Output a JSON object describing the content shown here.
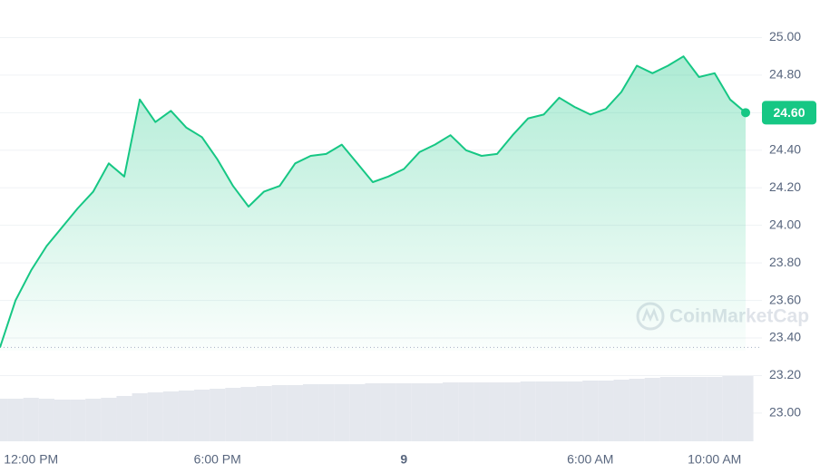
{
  "chart_data": {
    "type": "line",
    "categories": [
      null,
      null,
      "12:00 PM",
      null,
      null,
      null,
      null,
      null,
      null,
      null,
      null,
      null,
      null,
      null,
      "6:00 PM",
      null,
      null,
      null,
      null,
      null,
      null,
      null,
      null,
      null,
      null,
      null,
      "9",
      null,
      null,
      null,
      null,
      null,
      null,
      null,
      null,
      null,
      null,
      null,
      "6:00 AM",
      null,
      null,
      null,
      null,
      null,
      null,
      null,
      "10:00 AM",
      null,
      null
    ],
    "values": [
      23.35,
      23.6,
      23.76,
      23.89,
      23.99,
      24.09,
      24.18,
      24.33,
      24.26,
      24.67,
      24.55,
      24.61,
      24.52,
      24.47,
      24.35,
      24.21,
      24.1,
      24.18,
      24.21,
      24.33,
      24.37,
      24.38,
      24.43,
      24.33,
      24.23,
      24.26,
      24.3,
      24.39,
      24.43,
      24.48,
      24.4,
      24.37,
      24.38,
      24.48,
      24.57,
      24.59,
      24.68,
      24.63,
      24.59,
      24.62,
      24.71,
      24.85,
      24.81,
      24.85,
      24.9,
      24.79,
      24.81,
      24.67,
      24.6
    ],
    "value_labels": [
      null,
      null,
      null,
      null,
      null,
      null,
      null,
      null,
      null,
      null,
      null,
      null,
      null,
      null,
      null,
      null,
      null,
      null,
      null,
      null,
      null,
      null,
      null,
      null,
      null,
      null,
      null,
      null,
      null,
      null,
      null,
      null,
      null,
      null,
      null,
      null,
      null,
      null,
      null,
      null,
      null,
      null,
      null,
      null,
      null,
      null,
      null,
      null,
      "24.60"
    ],
    "volume": [
      47,
      47,
      48,
      47,
      46,
      46,
      47,
      48,
      50,
      53,
      54,
      55,
      56,
      57,
      58,
      59,
      60,
      61,
      62,
      62,
      63,
      63,
      63,
      63,
      64,
      64,
      64,
      64,
      64,
      65,
      65,
      65,
      65,
      65,
      66,
      66,
      66,
      66,
      67,
      67,
      68,
      69,
      70,
      71,
      71,
      71,
      71,
      72,
      72
    ],
    "color": "#16c784",
    "ylim": [
      22.85,
      25.2
    ],
    "y2lim": [
      0,
      100
    ],
    "yticks": [
      {
        "value": 23,
        "label": "23.00"
      },
      {
        "value": 23.2,
        "label": "23.20"
      },
      {
        "value": 23.4,
        "label": "23.40"
      },
      {
        "value": 23.6,
        "label": "23.60"
      },
      {
        "value": 23.8,
        "label": "23.80"
      },
      {
        "value": 24,
        "label": "24.00"
      },
      {
        "value": 24.2,
        "label": "24.20"
      },
      {
        "value": 24.4,
        "label": "24.40"
      },
      {
        "value": 24.6,
        "label": "24.60"
      },
      {
        "value": 24.8,
        "label": "24.80"
      },
      {
        "value": 25,
        "label": "25.00"
      }
    ],
    "grid": true,
    "watermark": "CoinMarketCap"
  }
}
